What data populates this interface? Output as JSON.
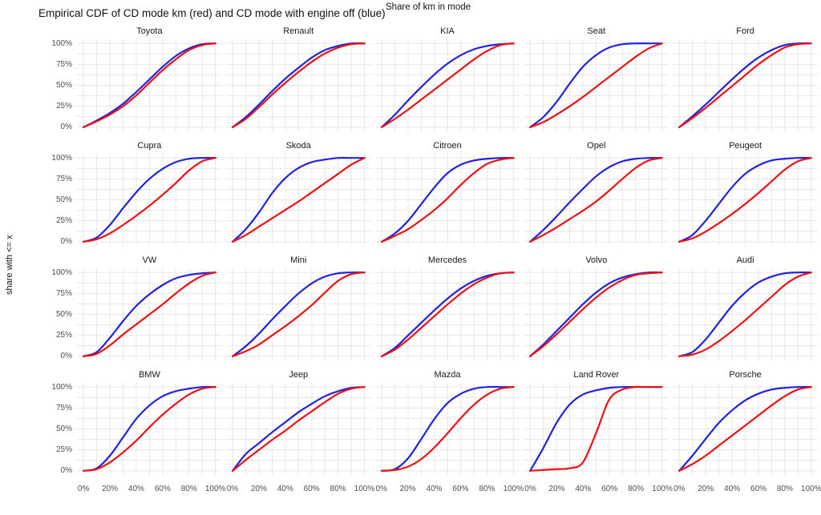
{
  "chart_data": {
    "type": "line",
    "title": "Empirical CDF of CD mode km (red) and CD mode with engine off (blue)",
    "xlabel": "Share of km in mode",
    "ylabel": "share with <= x",
    "x_tick_labels": [
      "0%",
      "20%",
      "40%",
      "60%",
      "80%",
      "100%"
    ],
    "y_tick_labels": [
      "0%",
      "25%",
      "50%",
      "75%",
      "100%"
    ],
    "x_ticks": [
      0,
      20,
      40,
      60,
      80,
      100
    ],
    "y_ticks": [
      0,
      25,
      50,
      75,
      100
    ],
    "xlim": [
      0,
      100
    ],
    "ylim": [
      0,
      100
    ],
    "grid": "on",
    "legend_position": "none",
    "series_labels": {
      "red": "CD mode km",
      "blue": "CD mode with engine off"
    },
    "colors": {
      "red": "#EE1111",
      "blue": "#2222DD",
      "grid": "#E6E6E6",
      "tick_text": "#4d4d4d"
    },
    "facet_layout": {
      "rows": 4,
      "cols": 5
    },
    "x": [
      0,
      10,
      20,
      30,
      40,
      50,
      60,
      70,
      80,
      90,
      100
    ],
    "facets": [
      {
        "brand": "Toyota",
        "blue": [
          0,
          8,
          17,
          28,
          42,
          57,
          72,
          85,
          94,
          99,
          100
        ],
        "red": [
          0,
          7,
          15,
          25,
          38,
          53,
          68,
          81,
          92,
          98,
          100
        ]
      },
      {
        "brand": "Renault",
        "blue": [
          0,
          12,
          27,
          43,
          58,
          71,
          83,
          92,
          97,
          100,
          100
        ],
        "red": [
          0,
          10,
          24,
          39,
          53,
          66,
          78,
          88,
          95,
          99,
          100
        ]
      },
      {
        "brand": "KIA",
        "blue": [
          0,
          15,
          32,
          48,
          63,
          76,
          86,
          93,
          97,
          99,
          100
        ],
        "red": [
          0,
          10,
          21,
          33,
          45,
          57,
          69,
          81,
          91,
          98,
          100
        ]
      },
      {
        "brand": "Seat",
        "blue": [
          0,
          12,
          30,
          52,
          72,
          86,
          95,
          99,
          100,
          100,
          100
        ],
        "red": [
          0,
          6,
          15,
          25,
          36,
          48,
          60,
          72,
          84,
          94,
          100
        ]
      },
      {
        "brand": "Ford",
        "blue": [
          0,
          13,
          27,
          42,
          57,
          71,
          83,
          92,
          98,
          100,
          100
        ],
        "red": [
          0,
          11,
          23,
          36,
          49,
          62,
          75,
          86,
          95,
          99,
          100
        ]
      },
      {
        "brand": "Cupra",
        "blue": [
          0,
          5,
          20,
          40,
          59,
          75,
          87,
          95,
          99,
          100,
          100
        ],
        "red": [
          0,
          3,
          10,
          20,
          31,
          43,
          56,
          70,
          85,
          96,
          100
        ]
      },
      {
        "brand": "Skoda",
        "blue": [
          0,
          15,
          35,
          58,
          76,
          88,
          95,
          98,
          100,
          100,
          100
        ],
        "red": [
          0,
          8,
          18,
          28,
          38,
          48,
          59,
          70,
          81,
          92,
          100
        ]
      },
      {
        "brand": "Citroen",
        "blue": [
          0,
          10,
          25,
          45,
          65,
          82,
          92,
          97,
          99,
          100,
          100
        ],
        "red": [
          0,
          7,
          15,
          26,
          38,
          52,
          68,
          82,
          93,
          98,
          100
        ]
      },
      {
        "brand": "Opel",
        "blue": [
          0,
          14,
          30,
          47,
          63,
          78,
          89,
          96,
          99,
          100,
          100
        ],
        "red": [
          0,
          8,
          17,
          27,
          37,
          48,
          61,
          75,
          88,
          97,
          100
        ]
      },
      {
        "brand": "Peugeot",
        "blue": [
          0,
          8,
          25,
          45,
          65,
          81,
          91,
          97,
          99,
          100,
          100
        ],
        "red": [
          0,
          4,
          12,
          22,
          33,
          45,
          58,
          72,
          86,
          96,
          100
        ]
      },
      {
        "brand": "VW",
        "blue": [
          0,
          5,
          22,
          42,
          60,
          74,
          85,
          93,
          97,
          99,
          100
        ],
        "red": [
          0,
          3,
          13,
          26,
          38,
          50,
          62,
          75,
          87,
          96,
          100
        ]
      },
      {
        "brand": "Mini",
        "blue": [
          0,
          12,
          27,
          44,
          60,
          75,
          87,
          95,
          99,
          100,
          100
        ],
        "red": [
          0,
          6,
          14,
          25,
          36,
          48,
          61,
          76,
          90,
          98,
          100
        ]
      },
      {
        "brand": "Mercedes",
        "blue": [
          0,
          10,
          25,
          40,
          55,
          69,
          81,
          90,
          96,
          99,
          100
        ],
        "red": [
          0,
          8,
          20,
          34,
          48,
          62,
          75,
          86,
          94,
          99,
          100
        ]
      },
      {
        "brand": "Volvo",
        "blue": [
          0,
          14,
          30,
          46,
          62,
          76,
          87,
          94,
          98,
          100,
          100
        ],
        "red": [
          0,
          12,
          26,
          41,
          56,
          70,
          82,
          91,
          97,
          99,
          100
        ]
      },
      {
        "brand": "Audi",
        "blue": [
          0,
          5,
          20,
          40,
          60,
          76,
          88,
          95,
          99,
          100,
          100
        ],
        "red": [
          0,
          2,
          8,
          18,
          30,
          43,
          57,
          71,
          85,
          95,
          100
        ]
      },
      {
        "brand": "BMW",
        "blue": [
          0,
          3,
          18,
          40,
          62,
          78,
          89,
          95,
          98,
          100,
          100
        ],
        "red": [
          0,
          2,
          10,
          22,
          36,
          52,
          67,
          80,
          91,
          98,
          100
        ]
      },
      {
        "brand": "Jeep",
        "blue": [
          0,
          20,
          33,
          46,
          58,
          70,
          80,
          89,
          95,
          99,
          100
        ],
        "red": [
          0,
          13,
          25,
          37,
          48,
          60,
          71,
          82,
          92,
          98,
          100
        ]
      },
      {
        "brand": "Mazda",
        "blue": [
          0,
          2,
          15,
          38,
          62,
          81,
          92,
          98,
          100,
          100,
          100
        ],
        "red": [
          0,
          1,
          5,
          14,
          28,
          45,
          63,
          79,
          91,
          98,
          100
        ]
      },
      {
        "brand": "Land Rover",
        "blue": [
          0,
          27,
          57,
          79,
          91,
          96,
          99,
          100,
          100,
          100,
          100
        ],
        "red": [
          0,
          1,
          2,
          3,
          10,
          45,
          85,
          97,
          100,
          100,
          100
        ]
      },
      {
        "brand": "Porsche",
        "blue": [
          0,
          18,
          38,
          57,
          72,
          84,
          92,
          97,
          99,
          100,
          100
        ],
        "red": [
          0,
          8,
          18,
          30,
          42,
          54,
          66,
          78,
          89,
          97,
          100
        ]
      }
    ]
  }
}
